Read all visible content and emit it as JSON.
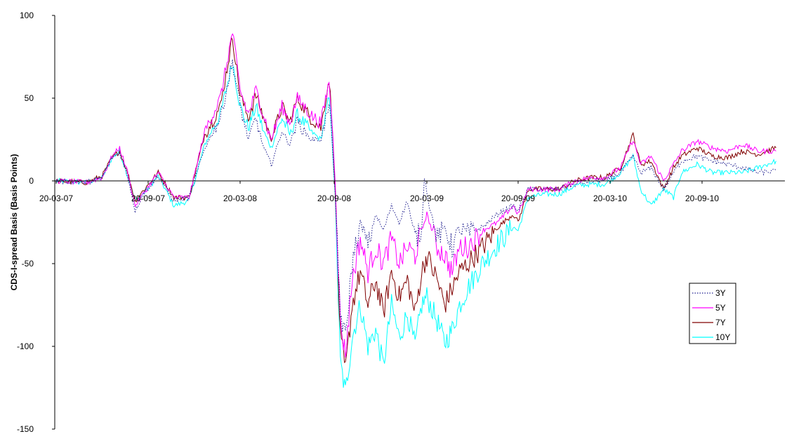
{
  "chart_data": {
    "type": "line",
    "title": "",
    "xlabel": "",
    "ylabel": "CDS-I-spread Basis (Basis Points)",
    "ylim": [
      -150,
      100
    ],
    "yticks": [
      100,
      50,
      0,
      -50,
      -100,
      -150
    ],
    "xticks": [
      "20-03-07",
      "20-09-07",
      "20-03-08",
      "20-09-08",
      "20-03-09",
      "20-09-09",
      "20-03-10",
      "20-09-10"
    ],
    "xrange": [
      "2007-03-20",
      "2011-02-15"
    ],
    "grid": false,
    "legend_position": "right",
    "series": [
      {
        "name": "3Y",
        "color": "#1f1f8f",
        "dash": "dotted",
        "points": [
          [
            "2007-03-20",
            0
          ],
          [
            "2007-05-20",
            -1
          ],
          [
            "2007-06-20",
            2
          ],
          [
            "2007-07-10",
            14
          ],
          [
            "2007-07-25",
            17
          ],
          [
            "2007-08-10",
            3
          ],
          [
            "2007-08-25",
            -18
          ],
          [
            "2007-09-10",
            -8
          ],
          [
            "2007-10-10",
            3
          ],
          [
            "2007-11-10",
            -12
          ],
          [
            "2007-12-10",
            -10
          ],
          [
            "2008-01-10",
            20
          ],
          [
            "2008-02-10",
            38
          ],
          [
            "2008-03-05",
            72
          ],
          [
            "2008-03-20",
            45
          ],
          [
            "2008-04-05",
            25
          ],
          [
            "2008-04-20",
            38
          ],
          [
            "2008-05-05",
            20
          ],
          [
            "2008-05-20",
            10
          ],
          [
            "2008-06-10",
            30
          ],
          [
            "2008-06-25",
            22
          ],
          [
            "2008-07-10",
            36
          ],
          [
            "2008-08-05",
            25
          ],
          [
            "2008-08-25",
            25
          ],
          [
            "2008-09-10",
            45
          ],
          [
            "2008-09-15",
            30
          ],
          [
            "2008-09-22",
            -10
          ],
          [
            "2008-10-02",
            -80
          ],
          [
            "2008-10-12",
            -95
          ],
          [
            "2008-10-25",
            -50
          ],
          [
            "2008-11-10",
            -25
          ],
          [
            "2008-11-25",
            -40
          ],
          [
            "2008-12-10",
            -20
          ],
          [
            "2008-12-25",
            -30
          ],
          [
            "2009-01-10",
            -15
          ],
          [
            "2009-01-25",
            -25
          ],
          [
            "2009-02-10",
            -12
          ],
          [
            "2009-02-25",
            -35
          ],
          [
            "2009-03-10",
            -30
          ],
          [
            "2009-03-15",
            3
          ],
          [
            "2009-03-25",
            -15
          ],
          [
            "2009-04-10",
            -35
          ],
          [
            "2009-04-25",
            -28
          ],
          [
            "2009-05-10",
            -40
          ],
          [
            "2009-05-25",
            -30
          ],
          [
            "2009-06-10",
            -32
          ],
          [
            "2009-07-10",
            -28
          ],
          [
            "2009-08-10",
            -20
          ],
          [
            "2009-09-10",
            -15
          ],
          [
            "2009-09-20",
            -18
          ],
          [
            "2009-10-10",
            -5
          ],
          [
            "2009-11-10",
            -5
          ],
          [
            "2009-12-10",
            -5
          ],
          [
            "2010-01-10",
            -2
          ],
          [
            "2010-02-10",
            0
          ],
          [
            "2010-03-10",
            0
          ],
          [
            "2010-04-10",
            5
          ],
          [
            "2010-05-05",
            15
          ],
          [
            "2010-05-20",
            5
          ],
          [
            "2010-06-10",
            8
          ],
          [
            "2010-07-05",
            -5
          ],
          [
            "2010-07-25",
            5
          ],
          [
            "2010-08-10",
            12
          ],
          [
            "2010-09-10",
            15
          ],
          [
            "2010-10-10",
            12
          ],
          [
            "2010-11-10",
            10
          ],
          [
            "2010-12-10",
            8
          ],
          [
            "2011-01-10",
            5
          ],
          [
            "2011-02-15",
            6
          ]
        ]
      },
      {
        "name": "5Y",
        "color": "#ff00ff",
        "dash": "solid",
        "points": [
          [
            "2007-03-20",
            0
          ],
          [
            "2007-05-20",
            -1
          ],
          [
            "2007-06-20",
            2
          ],
          [
            "2007-07-10",
            15
          ],
          [
            "2007-07-25",
            20
          ],
          [
            "2007-08-10",
            5
          ],
          [
            "2007-08-25",
            -15
          ],
          [
            "2007-09-10",
            -8
          ],
          [
            "2007-10-10",
            5
          ],
          [
            "2007-11-10",
            -10
          ],
          [
            "2007-12-10",
            -10
          ],
          [
            "2008-01-10",
            30
          ],
          [
            "2008-02-10",
            50
          ],
          [
            "2008-03-05",
            90
          ],
          [
            "2008-03-20",
            55
          ],
          [
            "2008-04-05",
            40
          ],
          [
            "2008-04-20",
            55
          ],
          [
            "2008-05-05",
            40
          ],
          [
            "2008-05-20",
            25
          ],
          [
            "2008-06-10",
            45
          ],
          [
            "2008-06-25",
            35
          ],
          [
            "2008-07-10",
            50
          ],
          [
            "2008-08-05",
            40
          ],
          [
            "2008-08-25",
            35
          ],
          [
            "2008-09-10",
            60
          ],
          [
            "2008-09-15",
            40
          ],
          [
            "2008-09-22",
            0
          ],
          [
            "2008-10-02",
            -85
          ],
          [
            "2008-10-12",
            -105
          ],
          [
            "2008-10-25",
            -60
          ],
          [
            "2008-11-10",
            -35
          ],
          [
            "2008-11-25",
            -55
          ],
          [
            "2008-12-10",
            -40
          ],
          [
            "2008-12-25",
            -50
          ],
          [
            "2009-01-10",
            -35
          ],
          [
            "2009-01-25",
            -50
          ],
          [
            "2009-02-10",
            -40
          ],
          [
            "2009-02-25",
            -45
          ],
          [
            "2009-03-10",
            -30
          ],
          [
            "2009-03-20",
            -20
          ],
          [
            "2009-04-10",
            -40
          ],
          [
            "2009-04-25",
            -45
          ],
          [
            "2009-05-10",
            -55
          ],
          [
            "2009-05-25",
            -40
          ],
          [
            "2009-06-10",
            -40
          ],
          [
            "2009-07-10",
            -30
          ],
          [
            "2009-08-10",
            -25
          ],
          [
            "2009-09-10",
            -15
          ],
          [
            "2009-09-20",
            -20
          ],
          [
            "2009-10-10",
            -5
          ],
          [
            "2009-11-10",
            -5
          ],
          [
            "2009-12-10",
            -5
          ],
          [
            "2010-01-10",
            0
          ],
          [
            "2010-02-10",
            2
          ],
          [
            "2010-03-10",
            2
          ],
          [
            "2010-04-10",
            8
          ],
          [
            "2010-05-05",
            25
          ],
          [
            "2010-05-20",
            10
          ],
          [
            "2010-06-10",
            15
          ],
          [
            "2010-07-05",
            0
          ],
          [
            "2010-07-25",
            10
          ],
          [
            "2010-08-10",
            18
          ],
          [
            "2010-09-10",
            24
          ],
          [
            "2010-10-10",
            20
          ],
          [
            "2010-11-10",
            18
          ],
          [
            "2010-12-10",
            22
          ],
          [
            "2011-01-10",
            18
          ],
          [
            "2011-02-15",
            18
          ]
        ]
      },
      {
        "name": "7Y",
        "color": "#800000",
        "dash": "solid",
        "points": [
          [
            "2007-03-20",
            0
          ],
          [
            "2007-05-20",
            -1
          ],
          [
            "2007-06-20",
            3
          ],
          [
            "2007-07-10",
            14
          ],
          [
            "2007-07-25",
            18
          ],
          [
            "2007-08-10",
            5
          ],
          [
            "2007-08-25",
            -12
          ],
          [
            "2007-09-10",
            -6
          ],
          [
            "2007-10-10",
            5
          ],
          [
            "2007-11-10",
            -10
          ],
          [
            "2007-12-10",
            -10
          ],
          [
            "2008-01-10",
            28
          ],
          [
            "2008-02-10",
            45
          ],
          [
            "2008-03-05",
            87
          ],
          [
            "2008-03-20",
            52
          ],
          [
            "2008-04-05",
            38
          ],
          [
            "2008-04-20",
            52
          ],
          [
            "2008-05-05",
            38
          ],
          [
            "2008-05-20",
            25
          ],
          [
            "2008-06-10",
            45
          ],
          [
            "2008-06-25",
            35
          ],
          [
            "2008-07-10",
            50
          ],
          [
            "2008-08-05",
            38
          ],
          [
            "2008-08-25",
            32
          ],
          [
            "2008-09-10",
            62
          ],
          [
            "2008-09-15",
            40
          ],
          [
            "2008-09-22",
            -5
          ],
          [
            "2008-10-02",
            -95
          ],
          [
            "2008-10-12",
            -115
          ],
          [
            "2008-10-25",
            -75
          ],
          [
            "2008-11-10",
            -55
          ],
          [
            "2008-11-25",
            -75
          ],
          [
            "2008-12-10",
            -60
          ],
          [
            "2008-12-25",
            -80
          ],
          [
            "2009-01-10",
            -55
          ],
          [
            "2009-01-25",
            -70
          ],
          [
            "2009-02-10",
            -60
          ],
          [
            "2009-02-25",
            -80
          ],
          [
            "2009-03-10",
            -55
          ],
          [
            "2009-03-20",
            -45
          ],
          [
            "2009-04-10",
            -60
          ],
          [
            "2009-04-25",
            -75
          ],
          [
            "2009-05-10",
            -65
          ],
          [
            "2009-05-25",
            -55
          ],
          [
            "2009-06-10",
            -50
          ],
          [
            "2009-07-10",
            -40
          ],
          [
            "2009-08-10",
            -28
          ],
          [
            "2009-09-10",
            -20
          ],
          [
            "2009-09-20",
            -25
          ],
          [
            "2009-10-10",
            -5
          ],
          [
            "2009-11-10",
            -5
          ],
          [
            "2009-12-10",
            -5
          ],
          [
            "2010-01-10",
            0
          ],
          [
            "2010-02-10",
            2
          ],
          [
            "2010-03-10",
            2
          ],
          [
            "2010-04-10",
            8
          ],
          [
            "2010-05-05",
            28
          ],
          [
            "2010-05-20",
            10
          ],
          [
            "2010-06-10",
            12
          ],
          [
            "2010-07-05",
            -5
          ],
          [
            "2010-07-25",
            8
          ],
          [
            "2010-08-10",
            15
          ],
          [
            "2010-09-10",
            20
          ],
          [
            "2010-10-10",
            15
          ],
          [
            "2010-11-10",
            14
          ],
          [
            "2010-12-10",
            18
          ],
          [
            "2011-01-10",
            16
          ],
          [
            "2011-02-15",
            20
          ]
        ]
      },
      {
        "name": "10Y",
        "color": "#00ffff",
        "dash": "solid",
        "points": [
          [
            "2007-03-20",
            0
          ],
          [
            "2007-05-20",
            -1
          ],
          [
            "2007-06-20",
            2
          ],
          [
            "2007-07-10",
            14
          ],
          [
            "2007-07-25",
            18
          ],
          [
            "2007-08-10",
            3
          ],
          [
            "2007-08-25",
            -12
          ],
          [
            "2007-09-10",
            -8
          ],
          [
            "2007-10-10",
            3
          ],
          [
            "2007-11-10",
            -15
          ],
          [
            "2007-12-10",
            -12
          ],
          [
            "2008-01-10",
            22
          ],
          [
            "2008-02-10",
            40
          ],
          [
            "2008-03-05",
            72
          ],
          [
            "2008-03-20",
            45
          ],
          [
            "2008-04-05",
            32
          ],
          [
            "2008-04-20",
            45
          ],
          [
            "2008-05-05",
            30
          ],
          [
            "2008-05-20",
            20
          ],
          [
            "2008-06-10",
            38
          ],
          [
            "2008-06-25",
            28
          ],
          [
            "2008-07-10",
            40
          ],
          [
            "2008-08-05",
            30
          ],
          [
            "2008-08-25",
            25
          ],
          [
            "2008-09-10",
            50
          ],
          [
            "2008-09-15",
            30
          ],
          [
            "2008-09-22",
            -10
          ],
          [
            "2008-10-02",
            -110
          ],
          [
            "2008-10-12",
            -128
          ],
          [
            "2008-10-25",
            -95
          ],
          [
            "2008-11-10",
            -75
          ],
          [
            "2008-11-25",
            -100
          ],
          [
            "2008-12-10",
            -90
          ],
          [
            "2008-12-25",
            -112
          ],
          [
            "2009-01-10",
            -75
          ],
          [
            "2009-01-25",
            -95
          ],
          [
            "2009-02-10",
            -80
          ],
          [
            "2009-02-25",
            -100
          ],
          [
            "2009-03-10",
            -75
          ],
          [
            "2009-03-20",
            -70
          ],
          [
            "2009-04-10",
            -85
          ],
          [
            "2009-04-25",
            -98
          ],
          [
            "2009-05-10",
            -90
          ],
          [
            "2009-05-25",
            -75
          ],
          [
            "2009-06-10",
            -65
          ],
          [
            "2009-07-10",
            -50
          ],
          [
            "2009-08-10",
            -38
          ],
          [
            "2009-09-10",
            -28
          ],
          [
            "2009-09-20",
            -30
          ],
          [
            "2009-10-10",
            -10
          ],
          [
            "2009-11-10",
            -8
          ],
          [
            "2009-12-10",
            -8
          ],
          [
            "2010-01-10",
            -3
          ],
          [
            "2010-02-10",
            -2
          ],
          [
            "2010-03-10",
            -2
          ],
          [
            "2010-04-10",
            5
          ],
          [
            "2010-05-05",
            15
          ],
          [
            "2010-05-20",
            -5
          ],
          [
            "2010-06-10",
            -15
          ],
          [
            "2010-07-05",
            -5
          ],
          [
            "2010-07-25",
            -10
          ],
          [
            "2010-08-10",
            5
          ],
          [
            "2010-09-10",
            10
          ],
          [
            "2010-10-10",
            5
          ],
          [
            "2010-11-10",
            5
          ],
          [
            "2010-12-10",
            5
          ],
          [
            "2011-01-10",
            8
          ],
          [
            "2011-02-15",
            12
          ]
        ]
      }
    ]
  }
}
